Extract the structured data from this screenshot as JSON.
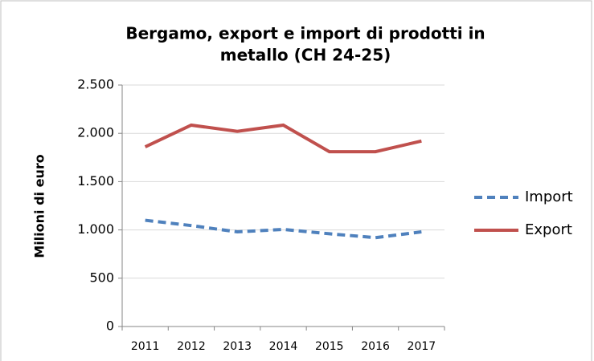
{
  "chart_data": {
    "type": "line",
    "title": [
      "Bergamo, export e import di prodotti in",
      "metallo (CH 24-25)"
    ],
    "y_label": "Milioni  di euro",
    "categories": [
      "2011",
      "2012",
      "2013",
      "2014",
      "2015",
      "2016",
      "2017"
    ],
    "series": [
      {
        "name": "Import",
        "color": "#4f81bd",
        "style": "dashed",
        "values": [
          1100,
          1045,
          980,
          1005,
          960,
          920,
          980
        ]
      },
      {
        "name": "Export",
        "color": "#c0504d",
        "style": "solid",
        "values": [
          1860,
          2085,
          2020,
          2085,
          1810,
          1810,
          1920
        ]
      }
    ],
    "ylim": [
      0,
      2500
    ],
    "yticks": [
      0,
      500,
      {
        "value": 1000,
        "label": "1.000"
      },
      {
        "value": 1500,
        "label": "1.500"
      },
      {
        "value": 2000,
        "label": "2.000"
      },
      {
        "value": 2500,
        "label": "2.500"
      }
    ],
    "grid": true,
    "legend": "right"
  }
}
